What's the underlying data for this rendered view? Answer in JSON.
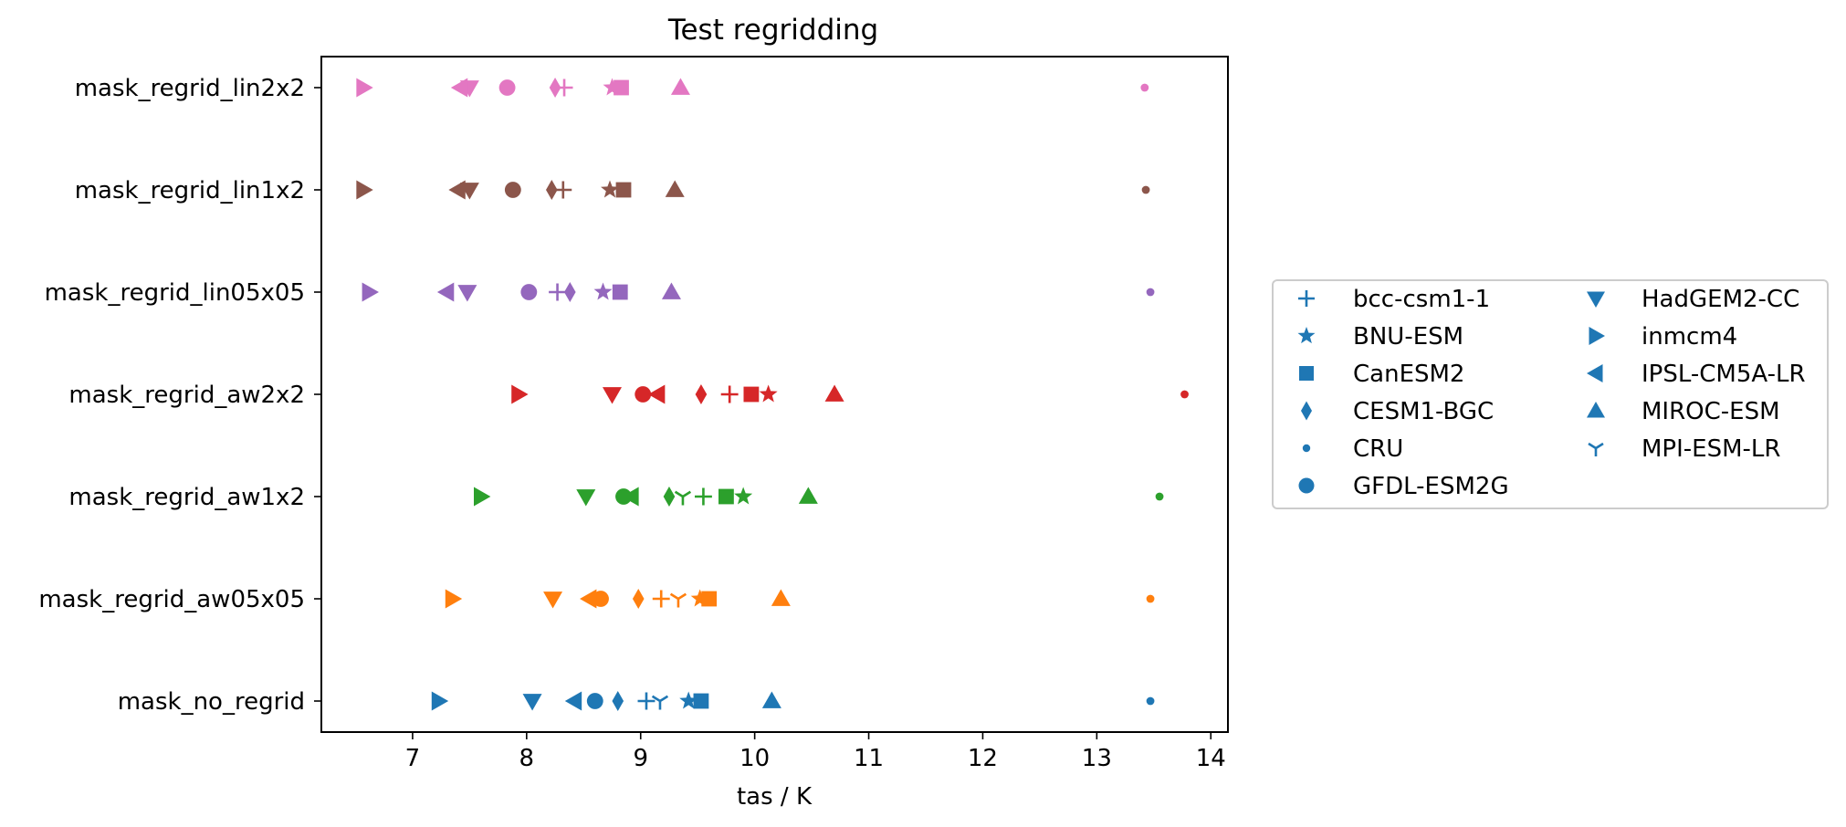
{
  "chart_data": {
    "type": "scatter",
    "title": "Test regridding",
    "xlabel": "tas / K",
    "ylabel": "",
    "xlim": [
      6.2,
      14.15
    ],
    "xticks": [
      7,
      8,
      9,
      10,
      11,
      12,
      13,
      14
    ],
    "grid": false,
    "legend_position": "right",
    "categories": [
      "mask_no_regrid",
      "mask_regrid_aw05x05",
      "mask_regrid_aw1x2",
      "mask_regrid_aw2x2",
      "mask_regrid_lin05x05",
      "mask_regrid_lin1x2",
      "mask_regrid_lin2x2"
    ],
    "category_colors": [
      "#1f77b4",
      "#ff7f0e",
      "#2ca02c",
      "#d62728",
      "#9467bd",
      "#8c564b",
      "#e377c2"
    ],
    "series": [
      {
        "name": "bcc-csm1-1",
        "marker": "plus",
        "values": [
          9.05,
          9.18,
          9.55,
          9.78,
          8.27,
          8.32,
          8.33
        ]
      },
      {
        "name": "BNU-ESM",
        "marker": "star",
        "values": [
          9.42,
          9.52,
          9.9,
          10.12,
          8.67,
          8.73,
          8.75
        ]
      },
      {
        "name": "CanESM2",
        "marker": "square",
        "values": [
          9.53,
          9.6,
          9.75,
          9.97,
          8.82,
          8.85,
          8.83
        ]
      },
      {
        "name": "CESM1-BGC",
        "marker": "thin_diamond",
        "values": [
          8.8,
          8.98,
          9.25,
          9.53,
          8.38,
          8.22,
          8.25
        ]
      },
      {
        "name": "CRU",
        "marker": "point",
        "values": [
          13.47,
          13.47,
          13.55,
          13.77,
          13.47,
          13.43,
          13.42
        ]
      },
      {
        "name": "GFDL-ESM2G",
        "marker": "circle",
        "values": [
          8.6,
          8.65,
          8.85,
          9.02,
          8.02,
          7.88,
          7.83
        ]
      },
      {
        "name": "HadGEM2-CC",
        "marker": "triangle_down",
        "values": [
          8.05,
          8.23,
          8.52,
          8.75,
          7.48,
          7.5,
          7.5
        ]
      },
      {
        "name": "inmcm4",
        "marker": "triangle_right",
        "values": [
          7.23,
          7.35,
          7.6,
          7.93,
          6.62,
          6.57,
          6.57
        ]
      },
      {
        "name": "IPSL-CM5A-LR",
        "marker": "triangle_left",
        "values": [
          8.42,
          8.55,
          8.92,
          9.15,
          7.3,
          7.4,
          7.42
        ]
      },
      {
        "name": "MIROC-ESM",
        "marker": "triangle_up",
        "values": [
          10.15,
          10.23,
          10.47,
          10.7,
          9.27,
          9.3,
          9.35
        ]
      },
      {
        "name": "MPI-ESM-LR",
        "marker": "tri_down",
        "values": [
          9.17,
          9.33,
          9.37,
          null,
          null,
          null,
          null
        ]
      }
    ]
  }
}
